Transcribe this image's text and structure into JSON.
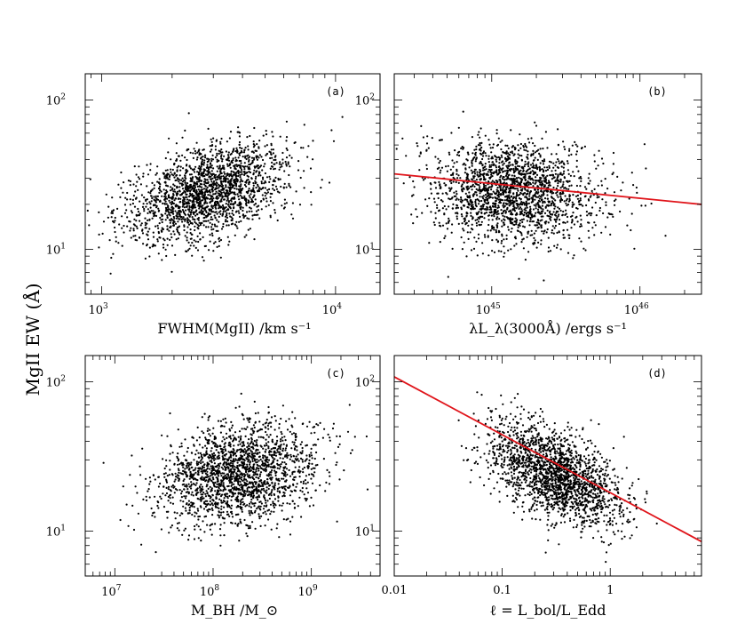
{
  "figure": {
    "ylabel": "MgII EW (Å)"
  },
  "chart_data": [
    {
      "id": "a",
      "type": "scatter",
      "panel_label": "(a)",
      "xlabel": "FWHM(MgII) /km s⁻¹",
      "xscale": "log",
      "yscale": "log",
      "xlim": [
        850,
        15500
      ],
      "ylim": [
        5,
        150
      ],
      "x_ticks": [
        {
          "value": 1000,
          "base": "10",
          "exp": "3"
        },
        {
          "value": 10000,
          "base": "10",
          "exp": "4"
        }
      ],
      "y_ticks": [
        {
          "value": 10,
          "base": "10",
          "exp": "1"
        },
        {
          "value": 100,
          "base": "10",
          "exp": "2"
        }
      ],
      "points": {
        "n": 2000,
        "x_center_log": 3.45,
        "x_sigma_log": 0.17,
        "y_center_log": 1.38,
        "y_sigma_log": 0.17,
        "correlation": 0.45
      }
    },
    {
      "id": "b",
      "type": "scatter",
      "panel_label": "(b)",
      "xlabel": "λL_λ(3000Å) /ergs s⁻¹",
      "xscale": "log",
      "yscale": "log",
      "xlim": [
        2.2e+44,
        2.6e+46
      ],
      "ylim": [
        5,
        150
      ],
      "x_ticks": [
        {
          "value": 1e+45,
          "base": "10",
          "exp": "45"
        },
        {
          "value": 1e+46,
          "base": "10",
          "exp": "46"
        }
      ],
      "y_ticks": [
        {
          "value": 10,
          "base": "10",
          "exp": "1"
        },
        {
          "value": 100,
          "base": "10",
          "exp": "2"
        }
      ],
      "fit_line": {
        "x": [
          2.2e+44,
          2.6e+46
        ],
        "y": [
          32,
          20
        ],
        "color": "#e0141a"
      },
      "points": {
        "n": 2000,
        "x_center_log": 45.15,
        "x_sigma_log": 0.28,
        "y_center_log": 1.38,
        "y_sigma_log": 0.17,
        "correlation": -0.12
      }
    },
    {
      "id": "c",
      "type": "scatter",
      "panel_label": "(c)",
      "xlabel": "M_BH /M_⊙",
      "xscale": "log",
      "yscale": "log",
      "xlim": [
        5000000.0,
        5000000000.0
      ],
      "ylim": [
        5,
        150
      ],
      "x_ticks": [
        {
          "value": 10000000.0,
          "base": "10",
          "exp": "7"
        },
        {
          "value": 100000000.0,
          "base": "10",
          "exp": "8"
        },
        {
          "value": 1000000000.0,
          "base": "10",
          "exp": "9"
        }
      ],
      "y_ticks": [
        {
          "value": 10,
          "base": "10",
          "exp": "1"
        },
        {
          "value": 100,
          "base": "10",
          "exp": "2"
        }
      ],
      "points": {
        "n": 2000,
        "x_center_log": 8.25,
        "x_sigma_log": 0.4,
        "y_center_log": 1.38,
        "y_sigma_log": 0.17,
        "correlation": 0.25
      }
    },
    {
      "id": "d",
      "type": "scatter",
      "panel_label": "(d)",
      "xlabel": "ℓ = L_bol/L_Edd",
      "xscale": "log",
      "yscale": "log",
      "xlim": [
        0.01,
        7
      ],
      "ylim": [
        5,
        150
      ],
      "x_ticks": [
        {
          "value": 0.01,
          "label": "0.01"
        },
        {
          "value": 0.1,
          "label": "0.1"
        },
        {
          "value": 1,
          "label": "1"
        }
      ],
      "y_ticks": [
        {
          "value": 10,
          "base": "10",
          "exp": "1"
        },
        {
          "value": 100,
          "base": "10",
          "exp": "2"
        }
      ],
      "fit_line": {
        "x": [
          0.01,
          7
        ],
        "y": [
          108,
          8.5
        ],
        "color": "#e0141a"
      },
      "points": {
        "n": 2000,
        "x_center_log": -0.5,
        "x_sigma_log": 0.3,
        "y_center_log": 1.38,
        "y_sigma_log": 0.17,
        "correlation": -0.55
      }
    }
  ]
}
